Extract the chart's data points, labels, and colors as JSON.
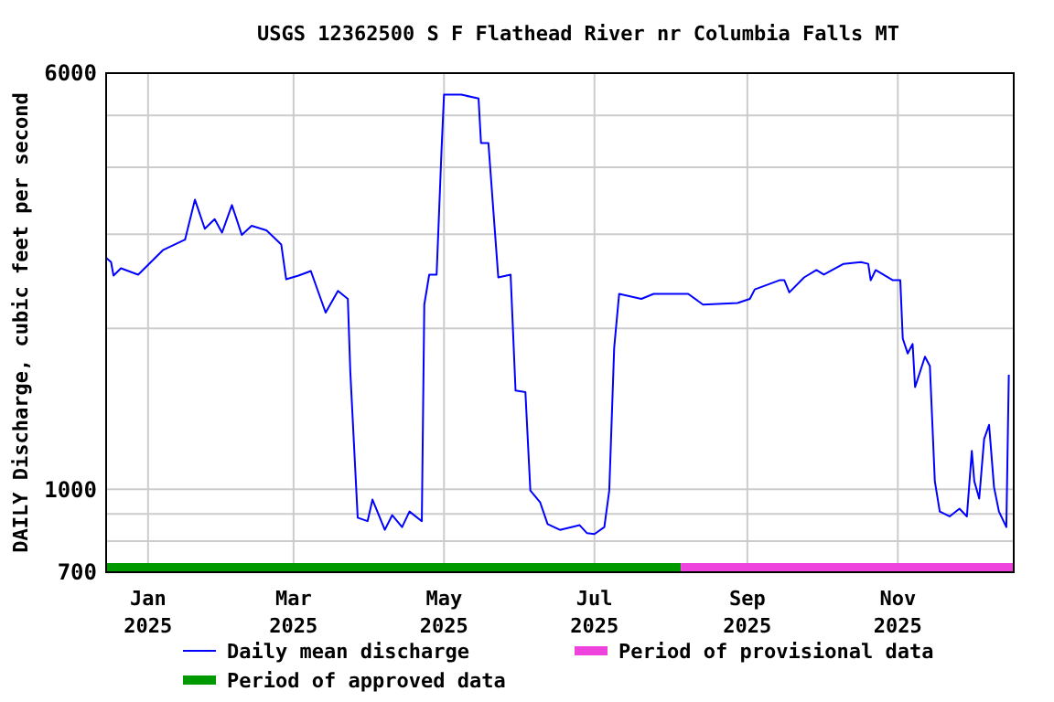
{
  "chart_data": {
    "type": "line",
    "title": "USGS 12362500 S F Flathead River nr Columbia Falls MT",
    "ylabel": "DAILY Discharge, cubic feet per second",
    "log": "y",
    "grid": true,
    "legend": "bottom",
    "xlim": [
      "2024-12-15",
      "2025-12-18"
    ],
    "xticks": [
      {
        "value": "2025-01-01",
        "label": "Jan\n2025"
      },
      {
        "value": "2025-03-01",
        "label": "Mar\n2025"
      },
      {
        "value": "2025-05-01",
        "label": "May\n2025"
      },
      {
        "value": "2025-07-01",
        "label": "Jul\n2025"
      },
      {
        "value": "2025-09-01",
        "label": "Sep\n2025"
      },
      {
        "value": "2025-11-01",
        "label": "Nov\n2025"
      }
    ],
    "ylim": [
      700,
      6000
    ],
    "yticks": [
      700,
      {
        "value": 800,
        "label": null
      },
      {
        "value": 900,
        "label": null
      },
      1000,
      {
        "value": 2000,
        "label": null
      },
      {
        "value": 3000,
        "label": null
      },
      {
        "value": 4000,
        "label": null
      },
      {
        "value": 5000,
        "label": null
      },
      6000
    ],
    "series": [
      {
        "name": "Period of approved data",
        "color": "#009900",
        "x": [
          "2024-12-15",
          "2025-08-05"
        ],
        "values": [
          714,
          714
        ]
      },
      {
        "name": "Period of provisional data",
        "color": "#ee44dd",
        "x": [
          "2025-08-05",
          "2025-12-18"
        ],
        "values": [
          714,
          714
        ]
      },
      {
        "name": "Daily mean discharge",
        "color": "#0000ff",
        "x": [
          "2024-12-15",
          "2024-12-17",
          "2024-12-18",
          "2024-12-21",
          "2024-12-28",
          "2025-01-07",
          "2025-01-16",
          "2025-01-20",
          "2025-01-24",
          "2025-01-28",
          "2025-01-31",
          "2025-02-04",
          "2025-02-08",
          "2025-02-12",
          "2025-02-18",
          "2025-02-24",
          "2025-02-26",
          "2025-03-03",
          "2025-03-08",
          "2025-03-14",
          "2025-03-19",
          "2025-03-23",
          "2025-03-24",
          "2025-03-27",
          "2025-03-31",
          "2025-04-02",
          "2025-04-07",
          "2025-04-10",
          "2025-04-14",
          "2025-04-17",
          "2025-04-22",
          "2025-04-23",
          "2025-04-25",
          "2025-04-28",
          "2025-04-30",
          "2025-05-01",
          "2025-05-08",
          "2025-05-15",
          "2025-05-16",
          "2025-05-19",
          "2025-05-23",
          "2025-05-28",
          "2025-05-30",
          "2025-06-03",
          "2025-06-05",
          "2025-06-09",
          "2025-06-12",
          "2025-06-17",
          "2025-06-25",
          "2025-06-28",
          "2025-07-01",
          "2025-07-05",
          "2025-07-07",
          "2025-07-09",
          "2025-07-11",
          "2025-07-20",
          "2025-07-25",
          "2025-08-08",
          "2025-08-14",
          "2025-08-28",
          "2025-09-02",
          "2025-09-04",
          "2025-09-14",
          "2025-09-16",
          "2025-09-18",
          "2025-09-24",
          "2025-09-29",
          "2025-10-02",
          "2025-10-10",
          "2025-10-17",
          "2025-10-20",
          "2025-10-21",
          "2025-10-23",
          "2025-10-30",
          "2025-11-02",
          "2025-11-03",
          "2025-11-05",
          "2025-11-07",
          "2025-11-08",
          "2025-11-12",
          "2025-11-14",
          "2025-11-16",
          "2025-11-18",
          "2025-11-22",
          "2025-11-26",
          "2025-11-29",
          "2025-12-01",
          "2025-12-02",
          "2025-12-04",
          "2025-12-06",
          "2025-12-08",
          "2025-12-10",
          "2025-12-12",
          "2025-12-15",
          "2025-12-16"
        ],
        "values": [
          2710,
          2660,
          2510,
          2590,
          2520,
          2800,
          2930,
          3480,
          3070,
          3200,
          3020,
          3400,
          2990,
          3110,
          3050,
          2870,
          2470,
          2510,
          2560,
          2140,
          2350,
          2270,
          1660,
          885,
          872,
          957,
          840,
          895,
          850,
          909,
          872,
          2215,
          2520,
          2520,
          4320,
          5470,
          5470,
          5380,
          4440,
          4440,
          2490,
          2520,
          1530,
          1520,
          995,
          945,
          861,
          840,
          857,
          828,
          825,
          850,
          995,
          1840,
          2320,
          2270,
          2320,
          2320,
          2215,
          2230,
          2270,
          2365,
          2460,
          2460,
          2335,
          2490,
          2570,
          2520,
          2640,
          2660,
          2640,
          2460,
          2570,
          2460,
          2460,
          1915,
          1795,
          1870,
          1553,
          1770,
          1700,
          1036,
          909,
          890,
          920,
          890,
          1180,
          1036,
          961,
          1243,
          1320,
          1010,
          909,
          850,
          1638
        ]
      }
    ]
  }
}
